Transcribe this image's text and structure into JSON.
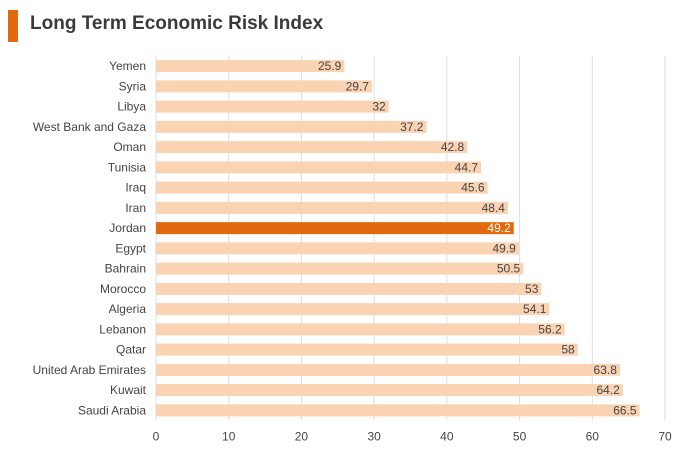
{
  "header": {
    "title": "Long Term Economic Risk Index",
    "accent_color": "#e2690e"
  },
  "colors": {
    "bar": "#fad3b3",
    "highlight": "#e2690e",
    "grid": "#dedede",
    "text": "#444444"
  },
  "chart_data": {
    "type": "bar",
    "orientation": "horizontal",
    "title": "Long Term Economic Risk Index",
    "xlabel": "",
    "ylabel": "",
    "xlim": [
      0,
      70
    ],
    "x_ticks": [
      0,
      10,
      20,
      30,
      40,
      50,
      60,
      70
    ],
    "grid": true,
    "legend": "none",
    "highlight_category": "Jordan",
    "categories": [
      "Yemen",
      "Syria",
      "Libya",
      "West Bank and Gaza",
      "Oman",
      "Tunisia",
      "Iraq",
      "Iran",
      "Jordan",
      "Egypt",
      "Bahrain",
      "Morocco",
      "Algeria",
      "Lebanon",
      "Qatar",
      "United Arab Emirates",
      "Kuwait",
      "Saudi Arabia"
    ],
    "values": [
      25.9,
      29.7,
      32,
      37.2,
      42.8,
      44.7,
      45.6,
      48.4,
      49.2,
      49.9,
      50.5,
      53,
      54.1,
      56.2,
      58,
      63.8,
      64.2,
      66.5
    ],
    "value_labels": [
      "25.9",
      "29.7",
      "32",
      "37.2",
      "42.8",
      "44.7",
      "45.6",
      "48.4",
      "49.2",
      "49.9",
      "50.5",
      "53",
      "54.1",
      "56.2",
      "58",
      "63.8",
      "64.2",
      "66.5"
    ]
  }
}
